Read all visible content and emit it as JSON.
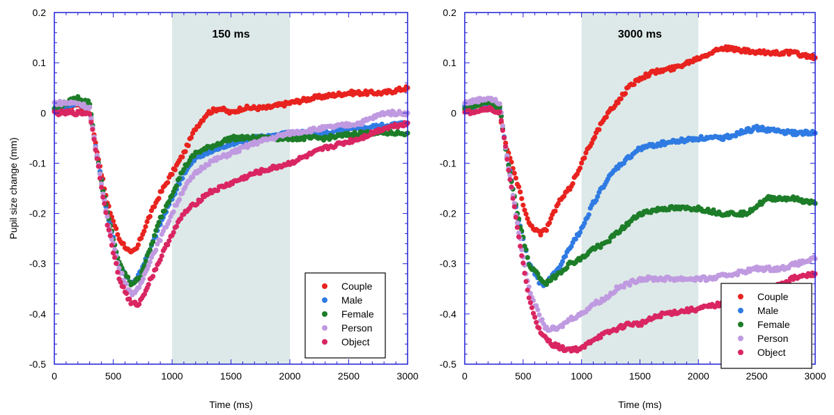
{
  "chart_data": [
    {
      "type": "scatter",
      "title": "150 ms",
      "xlabel": "Time (ms)",
      "ylabel": "Pupil size change (mm)",
      "xlim": [
        0,
        3000
      ],
      "ylim": [
        -0.5,
        0.2
      ],
      "xticks": [
        "0",
        "500",
        "1000",
        "1500",
        "2000",
        "2500",
        "3000"
      ],
      "yticks": [
        "0.2",
        "0.1",
        "0",
        "-0.1",
        "-0.2",
        "-0.3",
        "-0.4",
        "-0.5"
      ],
      "shaded_region": [
        1000,
        2000
      ],
      "legend": "bottom-right",
      "grid": false,
      "series": [
        {
          "name": "Couple",
          "color": "#e8231f",
          "points": [
            [
              0,
              0.0
            ],
            [
              200,
              0.02
            ],
            [
              300,
              0.0
            ],
            [
              350,
              -0.06
            ],
            [
              450,
              -0.18
            ],
            [
              550,
              -0.25
            ],
            [
              650,
              -0.28
            ],
            [
              700,
              -0.27
            ],
            [
              800,
              -0.21
            ],
            [
              900,
              -0.16
            ],
            [
              1000,
              -0.12
            ],
            [
              1100,
              -0.08
            ],
            [
              1200,
              -0.03
            ],
            [
              1300,
              0.0
            ],
            [
              1400,
              0.01
            ],
            [
              1500,
              0.0
            ],
            [
              1600,
              0.01
            ],
            [
              1800,
              0.01
            ],
            [
              2000,
              0.02
            ],
            [
              2200,
              0.03
            ],
            [
              2500,
              0.04
            ],
            [
              2800,
              0.04
            ],
            [
              3000,
              0.05
            ]
          ]
        },
        {
          "name": "Male",
          "color": "#2f7be3",
          "points": [
            [
              0,
              0.01
            ],
            [
              200,
              0.02
            ],
            [
              300,
              0.01
            ],
            [
              350,
              -0.07
            ],
            [
              450,
              -0.2
            ],
            [
              550,
              -0.3
            ],
            [
              650,
              -0.34
            ],
            [
              700,
              -0.33
            ],
            [
              800,
              -0.28
            ],
            [
              900,
              -0.22
            ],
            [
              1000,
              -0.17
            ],
            [
              1100,
              -0.12
            ],
            [
              1200,
              -0.09
            ],
            [
              1300,
              -0.08
            ],
            [
              1400,
              -0.07
            ],
            [
              1500,
              -0.06
            ],
            [
              1700,
              -0.05
            ],
            [
              2000,
              -0.04
            ],
            [
              2300,
              -0.04
            ],
            [
              2600,
              -0.03
            ],
            [
              3000,
              -0.02
            ]
          ]
        },
        {
          "name": "Female",
          "color": "#1d7d28",
          "points": [
            [
              0,
              0.01
            ],
            [
              200,
              0.03
            ],
            [
              300,
              0.02
            ],
            [
              350,
              -0.07
            ],
            [
              450,
              -0.2
            ],
            [
              550,
              -0.3
            ],
            [
              650,
              -0.34
            ],
            [
              720,
              -0.33
            ],
            [
              800,
              -0.28
            ],
            [
              900,
              -0.21
            ],
            [
              1000,
              -0.16
            ],
            [
              1100,
              -0.11
            ],
            [
              1200,
              -0.08
            ],
            [
              1300,
              -0.07
            ],
            [
              1400,
              -0.06
            ],
            [
              1500,
              -0.05
            ],
            [
              1700,
              -0.05
            ],
            [
              2000,
              -0.05
            ],
            [
              2300,
              -0.05
            ],
            [
              2600,
              -0.04
            ],
            [
              3000,
              -0.04
            ]
          ]
        },
        {
          "name": "Person",
          "color": "#c09ae0",
          "points": [
            [
              0,
              0.02
            ],
            [
              200,
              0.02
            ],
            [
              300,
              0.01
            ],
            [
              350,
              -0.07
            ],
            [
              450,
              -0.21
            ],
            [
              550,
              -0.31
            ],
            [
              650,
              -0.36
            ],
            [
              720,
              -0.35
            ],
            [
              800,
              -0.3
            ],
            [
              900,
              -0.25
            ],
            [
              1000,
              -0.2
            ],
            [
              1100,
              -0.15
            ],
            [
              1200,
              -0.12
            ],
            [
              1300,
              -0.1
            ],
            [
              1400,
              -0.09
            ],
            [
              1500,
              -0.08
            ],
            [
              1700,
              -0.06
            ],
            [
              2000,
              -0.04
            ],
            [
              2300,
              -0.03
            ],
            [
              2600,
              -0.02
            ],
            [
              2800,
              0.0
            ],
            [
              3000,
              0.0
            ]
          ]
        },
        {
          "name": "Object",
          "color": "#d92662",
          "points": [
            [
              0,
              0.0
            ],
            [
              200,
              0.0
            ],
            [
              300,
              0.0
            ],
            [
              350,
              -0.07
            ],
            [
              450,
              -0.22
            ],
            [
              550,
              -0.33
            ],
            [
              650,
              -0.38
            ],
            [
              720,
              -0.38
            ],
            [
              800,
              -0.34
            ],
            [
              900,
              -0.29
            ],
            [
              1000,
              -0.24
            ],
            [
              1100,
              -0.2
            ],
            [
              1200,
              -0.18
            ],
            [
              1300,
              -0.16
            ],
            [
              1400,
              -0.15
            ],
            [
              1500,
              -0.14
            ],
            [
              1700,
              -0.12
            ],
            [
              2000,
              -0.1
            ],
            [
              2300,
              -0.07
            ],
            [
              2600,
              -0.05
            ],
            [
              2800,
              -0.03
            ],
            [
              3000,
              -0.02
            ]
          ]
        }
      ]
    },
    {
      "type": "scatter",
      "title": "3000 ms",
      "xlabel": "Time (ms)",
      "ylabel": "",
      "xlim": [
        0,
        3000
      ],
      "ylim": [
        -0.5,
        0.2
      ],
      "xticks": [
        "0",
        "500",
        "1000",
        "1500",
        "2000",
        "2500",
        "3000"
      ],
      "yticks": [
        "0.2",
        "0.1",
        "0",
        "-0.1",
        "-0.2",
        "-0.3",
        "-0.4",
        "-0.5"
      ],
      "shaded_region": [
        1000,
        2000
      ],
      "legend": "bottom-right",
      "grid": false,
      "series": [
        {
          "name": "Couple",
          "color": "#e8231f",
          "points": [
            [
              0,
              0.01
            ],
            [
              200,
              0.02
            ],
            [
              300,
              0.0
            ],
            [
              350,
              -0.06
            ],
            [
              450,
              -0.14
            ],
            [
              550,
              -0.22
            ],
            [
              650,
              -0.24
            ],
            [
              700,
              -0.23
            ],
            [
              800,
              -0.18
            ],
            [
              900,
              -0.15
            ],
            [
              1000,
              -0.1
            ],
            [
              1100,
              -0.05
            ],
            [
              1200,
              -0.01
            ],
            [
              1300,
              0.02
            ],
            [
              1400,
              0.05
            ],
            [
              1500,
              0.07
            ],
            [
              1600,
              0.08
            ],
            [
              1800,
              0.09
            ],
            [
              2000,
              0.11
            ],
            [
              2200,
              0.13
            ],
            [
              2500,
              0.12
            ],
            [
              2800,
              0.12
            ],
            [
              3000,
              0.11
            ]
          ]
        },
        {
          "name": "Male",
          "color": "#2f7be3",
          "points": [
            [
              0,
              0.01
            ],
            [
              200,
              0.02
            ],
            [
              300,
              0.01
            ],
            [
              350,
              -0.07
            ],
            [
              450,
              -0.2
            ],
            [
              550,
              -0.3
            ],
            [
              650,
              -0.34
            ],
            [
              700,
              -0.34
            ],
            [
              800,
              -0.31
            ],
            [
              900,
              -0.27
            ],
            [
              1000,
              -0.23
            ],
            [
              1100,
              -0.18
            ],
            [
              1200,
              -0.14
            ],
            [
              1300,
              -0.11
            ],
            [
              1400,
              -0.09
            ],
            [
              1500,
              -0.07
            ],
            [
              1700,
              -0.06
            ],
            [
              2000,
              -0.05
            ],
            [
              2200,
              -0.05
            ],
            [
              2500,
              -0.03
            ],
            [
              2800,
              -0.04
            ],
            [
              3000,
              -0.04
            ]
          ]
        },
        {
          "name": "Female",
          "color": "#1d7d28",
          "points": [
            [
              0,
              0.01
            ],
            [
              200,
              0.02
            ],
            [
              300,
              0.01
            ],
            [
              350,
              -0.07
            ],
            [
              450,
              -0.2
            ],
            [
              550,
              -0.3
            ],
            [
              650,
              -0.33
            ],
            [
              700,
              -0.34
            ],
            [
              800,
              -0.32
            ],
            [
              900,
              -0.3
            ],
            [
              1000,
              -0.29
            ],
            [
              1100,
              -0.27
            ],
            [
              1200,
              -0.26
            ],
            [
              1300,
              -0.24
            ],
            [
              1400,
              -0.22
            ],
            [
              1500,
              -0.2
            ],
            [
              1700,
              -0.19
            ],
            [
              2000,
              -0.19
            ],
            [
              2200,
              -0.2
            ],
            [
              2400,
              -0.2
            ],
            [
              2600,
              -0.17
            ],
            [
              2800,
              -0.17
            ],
            [
              3000,
              -0.18
            ]
          ]
        },
        {
          "name": "Person",
          "color": "#c09ae0",
          "points": [
            [
              0,
              0.02
            ],
            [
              200,
              0.03
            ],
            [
              300,
              0.02
            ],
            [
              350,
              -0.07
            ],
            [
              450,
              -0.22
            ],
            [
              550,
              -0.35
            ],
            [
              650,
              -0.41
            ],
            [
              700,
              -0.43
            ],
            [
              800,
              -0.43
            ],
            [
              900,
              -0.41
            ],
            [
              1000,
              -0.4
            ],
            [
              1100,
              -0.38
            ],
            [
              1200,
              -0.37
            ],
            [
              1300,
              -0.35
            ],
            [
              1400,
              -0.34
            ],
            [
              1500,
              -0.33
            ],
            [
              1700,
              -0.33
            ],
            [
              1900,
              -0.33
            ],
            [
              2100,
              -0.33
            ],
            [
              2300,
              -0.32
            ],
            [
              2500,
              -0.31
            ],
            [
              2700,
              -0.31
            ],
            [
              3000,
              -0.29
            ]
          ]
        },
        {
          "name": "Object",
          "color": "#d92662",
          "points": [
            [
              0,
              0.0
            ],
            [
              200,
              0.01
            ],
            [
              300,
              0.0
            ],
            [
              350,
              -0.07
            ],
            [
              450,
              -0.23
            ],
            [
              550,
              -0.37
            ],
            [
              650,
              -0.44
            ],
            [
              750,
              -0.46
            ],
            [
              850,
              -0.47
            ],
            [
              950,
              -0.47
            ],
            [
              1000,
              -0.47
            ],
            [
              1100,
              -0.45
            ],
            [
              1200,
              -0.44
            ],
            [
              1300,
              -0.43
            ],
            [
              1400,
              -0.42
            ],
            [
              1500,
              -0.42
            ],
            [
              1700,
              -0.4
            ],
            [
              2000,
              -0.39
            ],
            [
              2200,
              -0.38
            ],
            [
              2500,
              -0.36
            ],
            [
              2800,
              -0.33
            ],
            [
              3000,
              -0.32
            ]
          ]
        }
      ]
    }
  ]
}
